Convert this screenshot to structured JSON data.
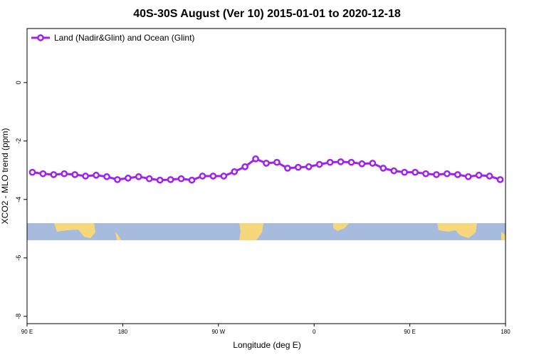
{
  "chart_data": {
    "type": "line",
    "title": "40S-30S August (Ver 10)   2015-01-01 to 2020-12-18",
    "x_label": "Longitude (deg E)",
    "y_label": "XCO2 - MLO trend (ppm)",
    "x": [
      95,
      105,
      115,
      125,
      135,
      145,
      155,
      165,
      175,
      185,
      195,
      205,
      215,
      225,
      235,
      245,
      255,
      265,
      275,
      285,
      295,
      305,
      315,
      325,
      335,
      345,
      355,
      365,
      375,
      385,
      395,
      405,
      415,
      425,
      435,
      445,
      455,
      465,
      475,
      485,
      495,
      505,
      515,
      525,
      535
    ],
    "series": [
      {
        "name": "Land (Nadir&Glint) and Ocean (Glint)",
        "color": "#a020f0",
        "values": [
          -3.07,
          -3.12,
          -3.15,
          -3.12,
          -3.15,
          -3.2,
          -3.17,
          -3.22,
          -3.32,
          -3.27,
          -3.22,
          -3.29,
          -3.34,
          -3.32,
          -3.29,
          -3.34,
          -3.2,
          -3.2,
          -3.2,
          -3.05,
          -2.88,
          -2.61,
          -2.76,
          -2.73,
          -2.93,
          -2.9,
          -2.88,
          -2.8,
          -2.73,
          -2.71,
          -2.73,
          -2.78,
          -2.76,
          -2.93,
          -3.02,
          -3.07,
          -3.07,
          -3.12,
          -3.15,
          -3.12,
          -3.15,
          -3.22,
          -3.17,
          -3.2,
          -3.32
        ]
      }
    ],
    "xlim": [
      90,
      540
    ],
    "xticks": [
      {
        "value": 90,
        "label": "90 E"
      },
      {
        "value": 180,
        "label": "180"
      },
      {
        "value": 270,
        "label": "90 W"
      },
      {
        "value": 360,
        "label": "0"
      },
      {
        "value": 450,
        "label": "90 E"
      },
      {
        "value": 540,
        "label": "180"
      }
    ],
    "ylim": [
      -8.25,
      1.85
    ],
    "yticks": [
      0,
      -2,
      -4,
      -6,
      -8
    ],
    "legend": "top-left"
  }
}
